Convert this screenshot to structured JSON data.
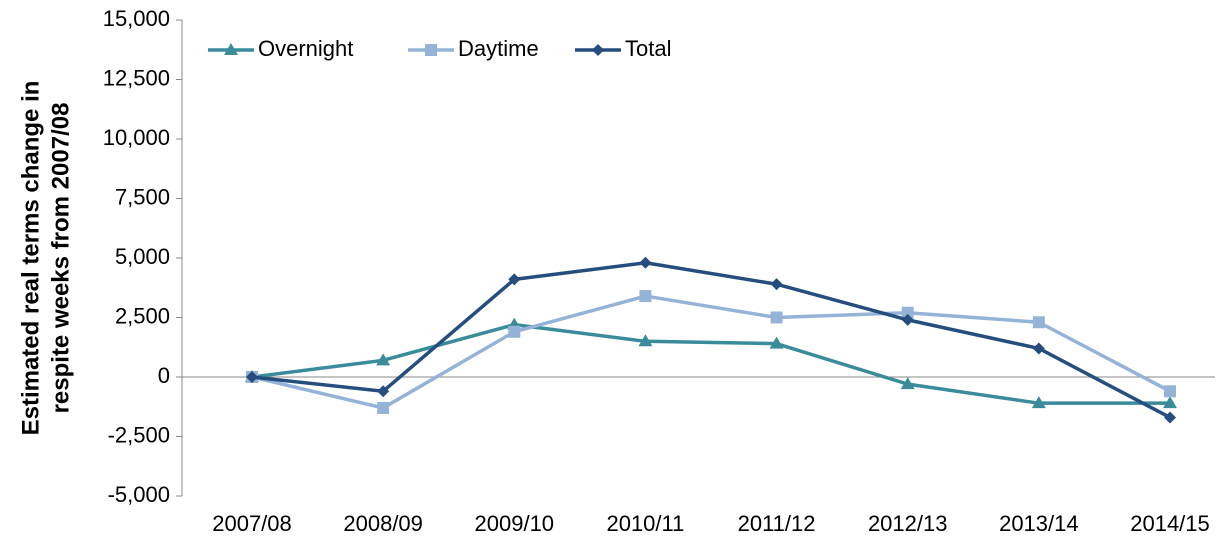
{
  "chart_data": {
    "type": "line",
    "y_label": [
      "Estimated real terms change in",
      "respite weeks  from 2007/08"
    ],
    "categories": [
      "2007/08",
      "2008/09",
      "2009/10",
      "2010/11",
      "2011/12",
      "2012/13",
      "2013/14",
      "2014/15"
    ],
    "series": [
      {
        "name": "Overnight",
        "color": "#3a8c9a",
        "marker": "triangle",
        "values": [
          0,
          700,
          2200,
          1500,
          1400,
          -300,
          -1100,
          -1100
        ]
      },
      {
        "name": "Daytime",
        "color": "#95b3d7",
        "marker": "square",
        "values": [
          0,
          -1300,
          1900,
          3400,
          2500,
          2700,
          2300,
          -600
        ]
      },
      {
        "name": "Total",
        "color": "#254e7f",
        "marker": "diamond",
        "values": [
          0,
          -600,
          4100,
          4800,
          3900,
          2400,
          1200,
          -1700
        ]
      }
    ],
    "ylim": [
      -5000,
      15000
    ],
    "yticks": [
      {
        "value": -5000,
        "label": "-5,000"
      },
      {
        "value": -2500,
        "label": "-2,500"
      },
      0,
      {
        "value": 2500,
        "label": "2,500"
      },
      {
        "value": 5000,
        "label": "5,000"
      },
      {
        "value": 7500,
        "label": "7,500"
      },
      {
        "value": 10000,
        "label": "10,000"
      },
      {
        "value": 12500,
        "label": "12,500"
      },
      {
        "value": 15000,
        "label": "15,000"
      }
    ],
    "grid": false,
    "legend": "top-left"
  }
}
